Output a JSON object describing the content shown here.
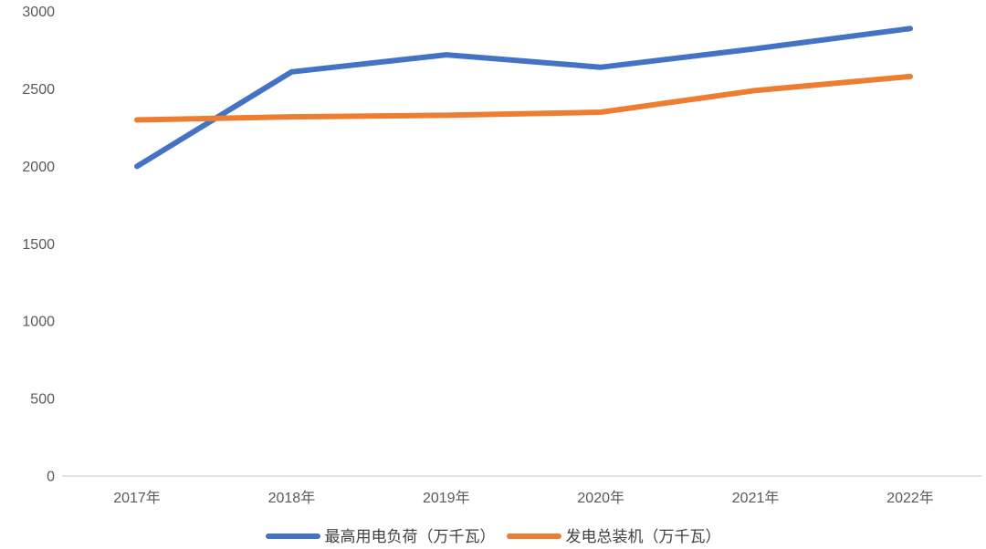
{
  "chart_data": {
    "type": "line",
    "categories": [
      "2017年",
      "2018年",
      "2019年",
      "2020年",
      "2021年",
      "2022年"
    ],
    "series": [
      {
        "name": "最高用电负荷（万千瓦）",
        "color": "#4472C4",
        "values": [
          2000,
          2610,
          2720,
          2640,
          2760,
          2890
        ]
      },
      {
        "name": "发电总装机（万千瓦）",
        "color": "#ED7D31",
        "values": [
          2300,
          2320,
          2330,
          2350,
          2490,
          2580
        ]
      }
    ],
    "title": "",
    "xlabel": "",
    "ylabel": "",
    "ylim": [
      0,
      3000
    ],
    "y_ticks": [
      0,
      500,
      1000,
      1500,
      2000,
      2500,
      3000
    ],
    "gridlines": false,
    "legend_position": "bottom"
  },
  "colors": {
    "background": "#FFFFFF",
    "axis_line": "#D9D9D9",
    "tick_text": "#595959",
    "legend_text": "#404040"
  }
}
